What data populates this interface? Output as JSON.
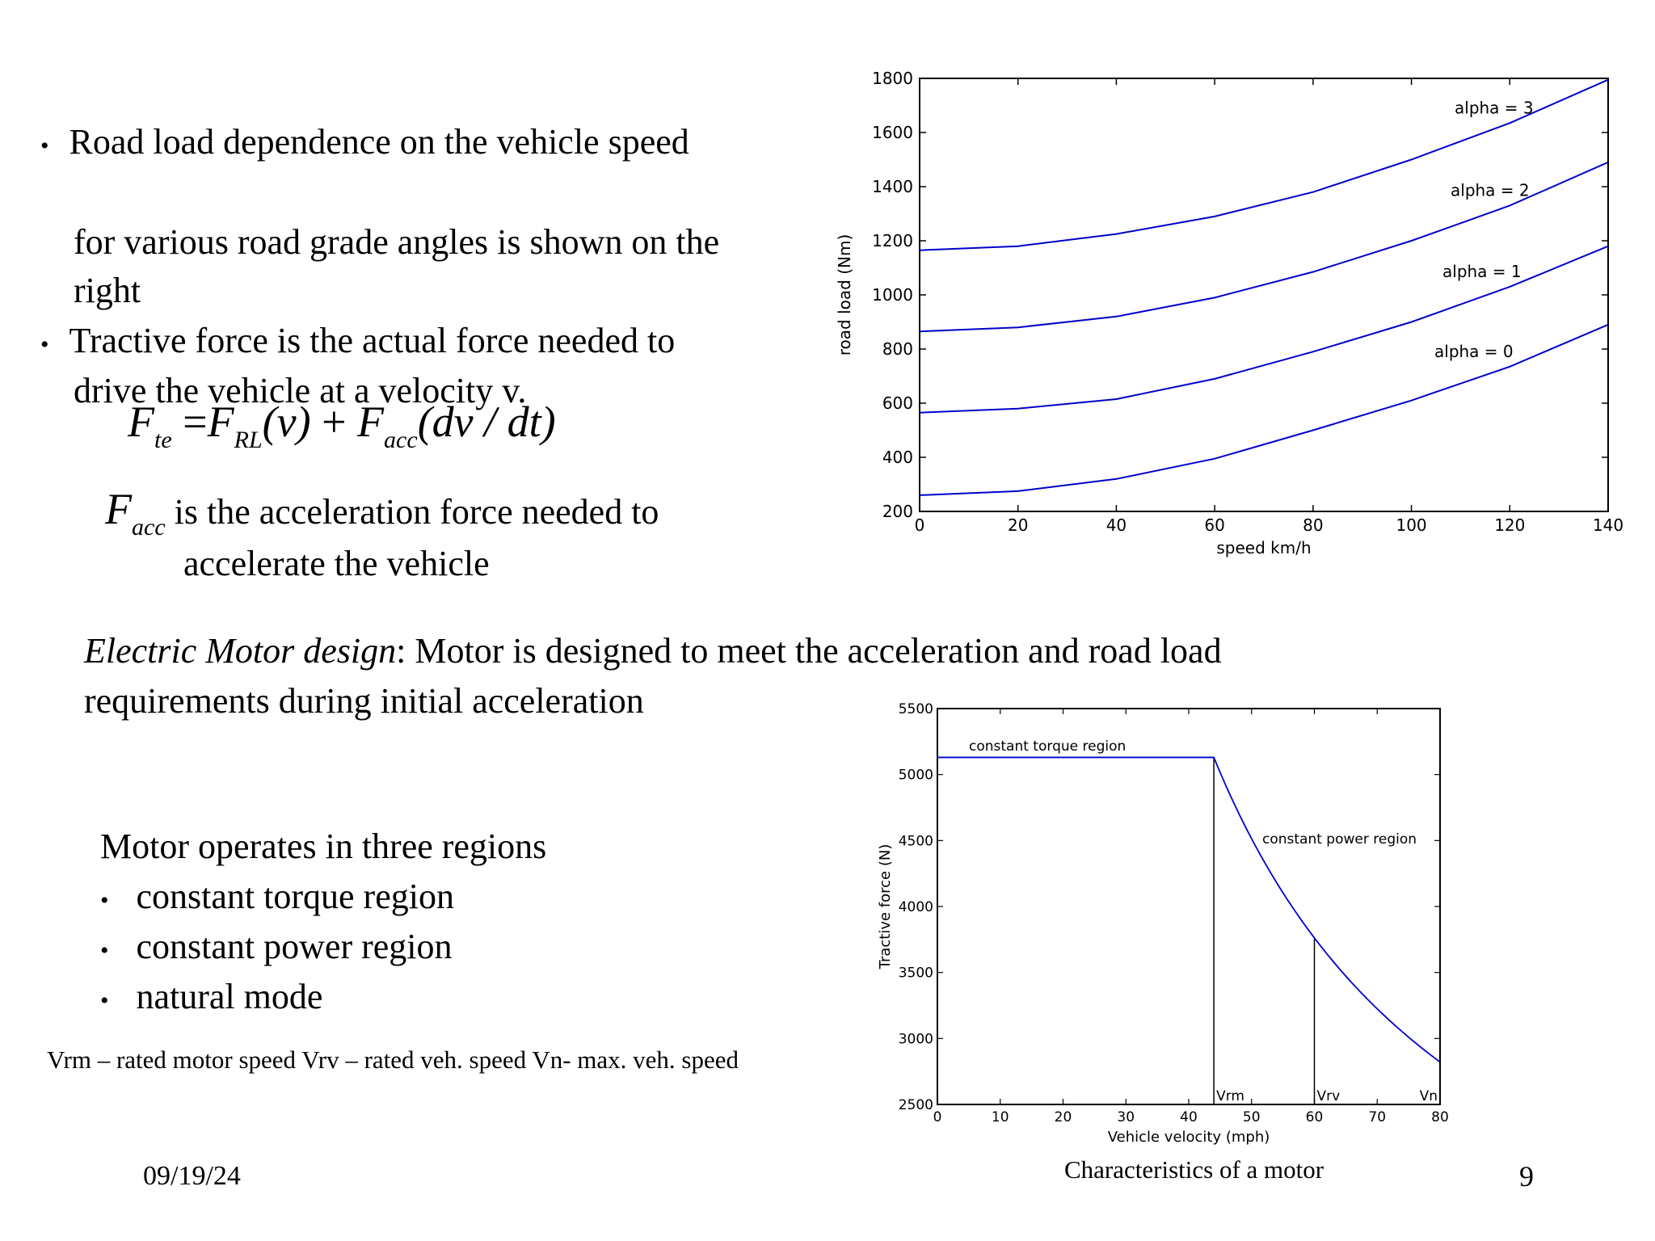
{
  "slide": {
    "bullet1": "Road load dependence on the vehicle speed",
    "line2": "for various road grade angles is shown on the",
    "line3": "right",
    "bullet2": "Tractive force is the actual force needed to",
    "line5": "drive the vehicle at a velocity v.",
    "equation": {
      "F1": "F",
      "sub1": "te",
      "eq": " =",
      "F2": "F",
      "sub2": "RL",
      "arg1": "(v)",
      "plus": " + ",
      "F3": "F",
      "sub3": "acc",
      "arg2": "(dv / dt)"
    },
    "facc_desc": {
      "F": "F",
      "sub": "acc",
      "line1": " is the acceleration force needed to",
      "line2": "accelerate the vehicle"
    },
    "motor_design": {
      "italic": "Electric Motor design",
      "rest": ": Motor is designed to meet the acceleration and road load",
      "line2": "requirements during initial acceleration"
    },
    "regions": {
      "heading": "Motor operates in three regions",
      "items": [
        "constant torque region",
        "constant power region",
        "natural mode"
      ]
    },
    "legend_note": "Vrm – rated motor speed  Vrv – rated veh. speed  Vn- max. veh. speed",
    "date": "09/19/24",
    "caption": "Characteristics of a motor",
    "page_number": "9"
  },
  "chart_data": [
    {
      "type": "line",
      "xlabel": "speed km/h",
      "ylabel": "road load (Nm)",
      "xlim": [
        0,
        140
      ],
      "ylim": [
        200,
        1800
      ],
      "xticks": [
        0,
        20,
        40,
        60,
        80,
        100,
        120,
        140
      ],
      "yticks": [
        200,
        400,
        600,
        800,
        1000,
        1200,
        1400,
        1600,
        1800
      ],
      "grid": false,
      "color": "#0000cc",
      "x": [
        0,
        20,
        40,
        60,
        80,
        100,
        120,
        140
      ],
      "series": [
        {
          "label": "alpha = 0",
          "values": [
            260,
            275,
            320,
            395,
            500,
            610,
            735,
            890
          ]
        },
        {
          "label": "alpha = 1",
          "values": [
            565,
            580,
            615,
            690,
            790,
            900,
            1030,
            1180
          ]
        },
        {
          "label": "alpha = 2",
          "values": [
            865,
            880,
            920,
            990,
            1085,
            1200,
            1330,
            1490
          ]
        },
        {
          "label": "alpha = 3",
          "values": [
            1165,
            1180,
            1225,
            1290,
            1380,
            1500,
            1635,
            1795
          ]
        }
      ]
    },
    {
      "type": "line",
      "xlabel": "Vehicle velocity (mph)",
      "ylabel": "Tractive force (N)",
      "xlim": [
        0,
        80
      ],
      "ylim": [
        2500,
        5500
      ],
      "xticks": [
        0,
        10,
        20,
        30,
        40,
        50,
        60,
        70,
        80
      ],
      "yticks": [
        2500,
        3000,
        3500,
        4000,
        4500,
        5000,
        5500
      ],
      "grid": false,
      "color": "#0000cc",
      "x": [
        0,
        44,
        50,
        56,
        60,
        65,
        70,
        75,
        80
      ],
      "values": [
        5130,
        5130,
        4514,
        4030,
        3762,
        3472,
        3224,
        3009,
        2821
      ],
      "annotations": [
        "constant torque region",
        "constant power region"
      ],
      "vlines": [
        {
          "label": "Vrm",
          "x": 44,
          "top": 5130
        },
        {
          "label": "Vrv",
          "x": 60,
          "top": 3762
        },
        {
          "label": "Vn",
          "x": 80,
          "top": 2821
        }
      ]
    }
  ]
}
